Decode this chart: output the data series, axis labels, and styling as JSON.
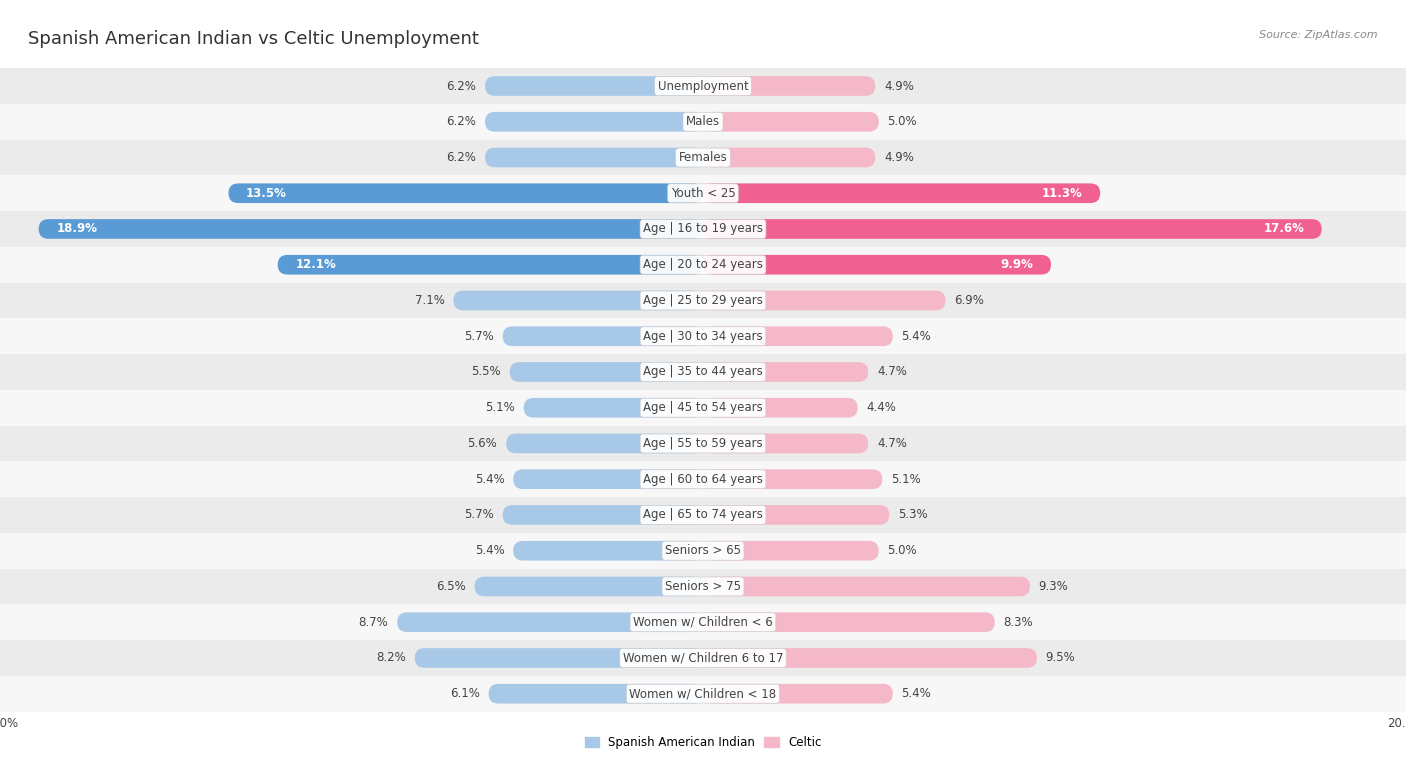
{
  "title": "Spanish American Indian vs Celtic Unemployment",
  "source": "Source: ZipAtlas.com",
  "categories": [
    "Unemployment",
    "Males",
    "Females",
    "Youth < 25",
    "Age | 16 to 19 years",
    "Age | 20 to 24 years",
    "Age | 25 to 29 years",
    "Age | 30 to 34 years",
    "Age | 35 to 44 years",
    "Age | 45 to 54 years",
    "Age | 55 to 59 years",
    "Age | 60 to 64 years",
    "Age | 65 to 74 years",
    "Seniors > 65",
    "Seniors > 75",
    "Women w/ Children < 6",
    "Women w/ Children 6 to 17",
    "Women w/ Children < 18"
  ],
  "left_values": [
    6.2,
    6.2,
    6.2,
    13.5,
    18.9,
    12.1,
    7.1,
    5.7,
    5.5,
    5.1,
    5.6,
    5.4,
    5.7,
    5.4,
    6.5,
    8.7,
    8.2,
    6.1
  ],
  "right_values": [
    4.9,
    5.0,
    4.9,
    11.3,
    17.6,
    9.9,
    6.9,
    5.4,
    4.7,
    4.4,
    4.7,
    5.1,
    5.3,
    5.0,
    9.3,
    8.3,
    9.5,
    5.4
  ],
  "left_color_normal": "#a8c8e8",
  "right_color_normal": "#f4b8c8",
  "left_color_highlight": "#5b9bd5",
  "right_color_highlight": "#f06090",
  "highlight_rows": [
    3,
    4,
    5
  ],
  "max_value": 20.0,
  "legend_left": "Spanish American Indian",
  "legend_right": "Celtic",
  "bar_height": 0.55,
  "bg_color_odd": "#ebebeb",
  "bg_color_even": "#f7f7f7",
  "title_fontsize": 13,
  "label_fontsize": 8.5,
  "value_fontsize": 8.5,
  "axis_label_fontsize": 8.5
}
